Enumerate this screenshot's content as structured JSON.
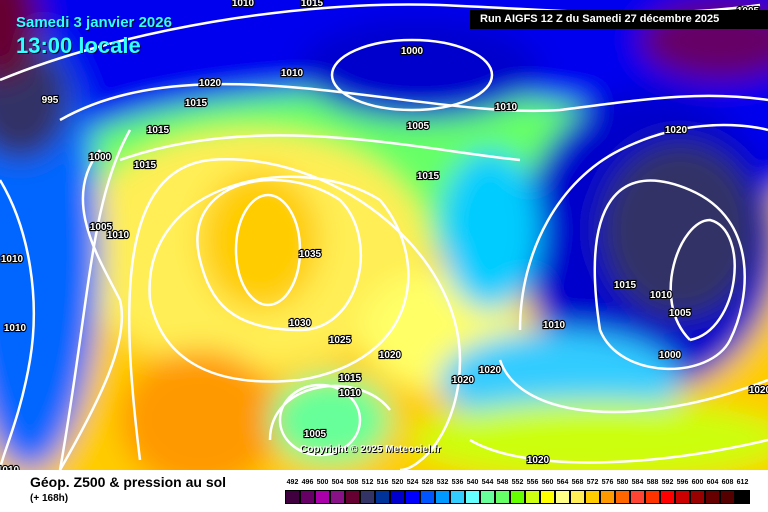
{
  "header": {
    "date": "Samedi 3 janvier 2026",
    "time": "13:00 locale",
    "run": "Run AIGFS 12 Z du Samedi 27 décembre 2025"
  },
  "footer": {
    "title": "Géop. Z500 & pression au sol",
    "subtitle": "(+ 168h)"
  },
  "copyright": "Copyright © 2025 Meteociel.fr",
  "legend": {
    "values": [
      "492",
      "496",
      "500",
      "504",
      "508",
      "512",
      "516",
      "520",
      "524",
      "528",
      "532",
      "536",
      "540",
      "544",
      "548",
      "552",
      "556",
      "560",
      "564",
      "568",
      "572",
      "576",
      "580",
      "584",
      "588",
      "592",
      "596",
      "600",
      "604",
      "608",
      "612"
    ],
    "colors": [
      "#400040",
      "#660066",
      "#aa00aa",
      "#881188",
      "#660033",
      "#333366",
      "#003399",
      "#0000cc",
      "#0000ff",
      "#0055ff",
      "#0099ff",
      "#33ccff",
      "#66ffff",
      "#66ff99",
      "#66ff66",
      "#66ff00",
      "#ccff11",
      "#ffff00",
      "#ffff88",
      "#ffee55",
      "#ffcc00",
      "#ff9900",
      "#ff6600",
      "#ff4433",
      "#ff3300",
      "#ff0000",
      "#cc0000",
      "#990000",
      "#660000",
      "#550000",
      "#000000"
    ]
  },
  "isobar_labels": [
    "1010",
    "1015",
    "1005",
    "1000",
    "1020",
    "1010",
    "1015",
    "995",
    "1015",
    "1010",
    "1005",
    "1020",
    "1000",
    "1015",
    "1015",
    "1005",
    "1010",
    "1010",
    "1035",
    "1015",
    "1010",
    "1005",
    "1010",
    "1030",
    "1010",
    "1025",
    "1020",
    "1000",
    "1015",
    "1010",
    "1020",
    "1020",
    "1005",
    "1020",
    "1020",
    "1010"
  ]
}
